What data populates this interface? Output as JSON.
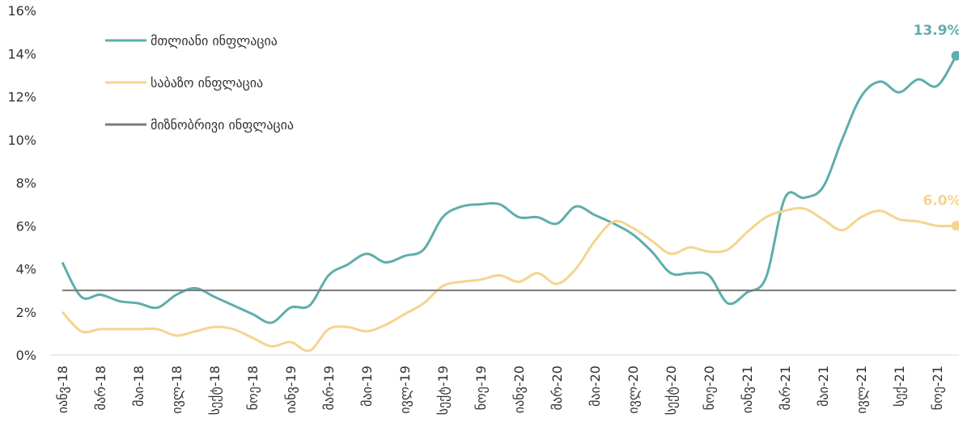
{
  "chart_data": {
    "type": "line",
    "categories": [
      "იანვ-18",
      null,
      "მარ-18",
      null,
      "მაი-18",
      null,
      "ივლ-18",
      null,
      "სექტ-18",
      null,
      "ნოე-18",
      null,
      "იანვ-19",
      null,
      "მარ-19",
      null,
      "მაი-19",
      null,
      "ივლ-19",
      null,
      "სექტ-19",
      null,
      "ნოე-19",
      null,
      "იანვ-20",
      null,
      "მარ-20",
      null,
      "მაი-20",
      null,
      "ივლ-20",
      null,
      "სექტ-20",
      null,
      "ნოე-20",
      null,
      "იანვ-21",
      null,
      "მარ-21",
      null,
      "მაი-21",
      null,
      "ივლ-21",
      null,
      "სექ-21",
      null,
      "ნოე-21",
      null
    ],
    "series": [
      {
        "name": "მთლიანი ინფლაცია",
        "color": "#5fadad",
        "values": [
          4.3,
          2.7,
          2.8,
          2.5,
          2.4,
          2.2,
          2.8,
          3.1,
          2.7,
          2.3,
          1.9,
          1.5,
          2.2,
          2.3,
          3.7,
          4.2,
          4.7,
          4.3,
          4.6,
          4.9,
          6.4,
          6.9,
          7.0,
          7.0,
          6.4,
          6.4,
          6.1,
          6.9,
          6.5,
          6.1,
          5.6,
          4.8,
          3.8,
          3.8,
          3.7,
          2.4,
          2.9,
          3.6,
          7.3,
          7.3,
          7.8,
          10.0,
          12.0,
          12.7,
          12.2,
          12.8,
          12.5,
          13.9
        ],
        "value_labels": [
          null,
          null,
          null,
          null,
          null,
          null,
          null,
          null,
          null,
          null,
          null,
          null,
          null,
          null,
          null,
          null,
          null,
          null,
          null,
          null,
          null,
          null,
          null,
          null,
          null,
          null,
          null,
          null,
          null,
          null,
          null,
          null,
          null,
          null,
          null,
          null,
          null,
          null,
          null,
          null,
          null,
          null,
          null,
          null,
          null,
          null,
          null,
          "13.9%"
        ]
      },
      {
        "name": "საბაზო ინფლაცია",
        "color": "#f5d48f",
        "values": [
          2.0,
          1.1,
          1.2,
          1.2,
          1.2,
          1.2,
          0.9,
          1.1,
          1.3,
          1.2,
          0.8,
          0.4,
          0.6,
          0.2,
          1.2,
          1.3,
          1.1,
          1.4,
          1.9,
          2.4,
          3.2,
          3.4,
          3.5,
          3.7,
          3.4,
          3.8,
          3.3,
          4.0,
          5.3,
          6.2,
          5.9,
          5.3,
          4.7,
          5.0,
          4.8,
          4.9,
          5.7,
          6.4,
          6.7,
          6.8,
          6.3,
          5.8,
          6.4,
          6.7,
          6.3,
          6.2,
          6.0,
          6.0
        ],
        "value_labels": [
          null,
          null,
          null,
          null,
          null,
          null,
          null,
          null,
          null,
          null,
          null,
          null,
          null,
          null,
          null,
          null,
          null,
          null,
          null,
          null,
          null,
          null,
          null,
          null,
          null,
          null,
          null,
          null,
          null,
          null,
          null,
          null,
          null,
          null,
          null,
          null,
          null,
          null,
          null,
          null,
          null,
          null,
          null,
          null,
          null,
          null,
          null,
          "6.0%"
        ]
      },
      {
        "name": "მიზნობრივი ინფლაცია",
        "color": "#7a7a7a",
        "values": [
          3,
          3,
          3,
          3,
          3,
          3,
          3,
          3,
          3,
          3,
          3,
          3,
          3,
          3,
          3,
          3,
          3,
          3,
          3,
          3,
          3,
          3,
          3,
          3,
          3,
          3,
          3,
          3,
          3,
          3,
          3,
          3,
          3,
          3,
          3,
          3,
          3,
          3,
          3,
          3,
          3,
          3,
          3,
          3,
          3,
          3,
          3,
          3
        ]
      }
    ],
    "ylim": [
      0,
      16
    ],
    "yticks": [
      {
        "value": 0,
        "label": "0%"
      },
      {
        "value": 2,
        "label": "2%"
      },
      {
        "value": 4,
        "label": "4%"
      },
      {
        "value": 6,
        "label": "6%"
      },
      {
        "value": 8,
        "label": "8%"
      },
      {
        "value": 10,
        "label": "10%"
      },
      {
        "value": 12,
        "label": "12%"
      },
      {
        "value": 14,
        "label": "14%"
      },
      {
        "value": 16,
        "label": "16%"
      }
    ],
    "grid": false,
    "legend": "upper left"
  }
}
